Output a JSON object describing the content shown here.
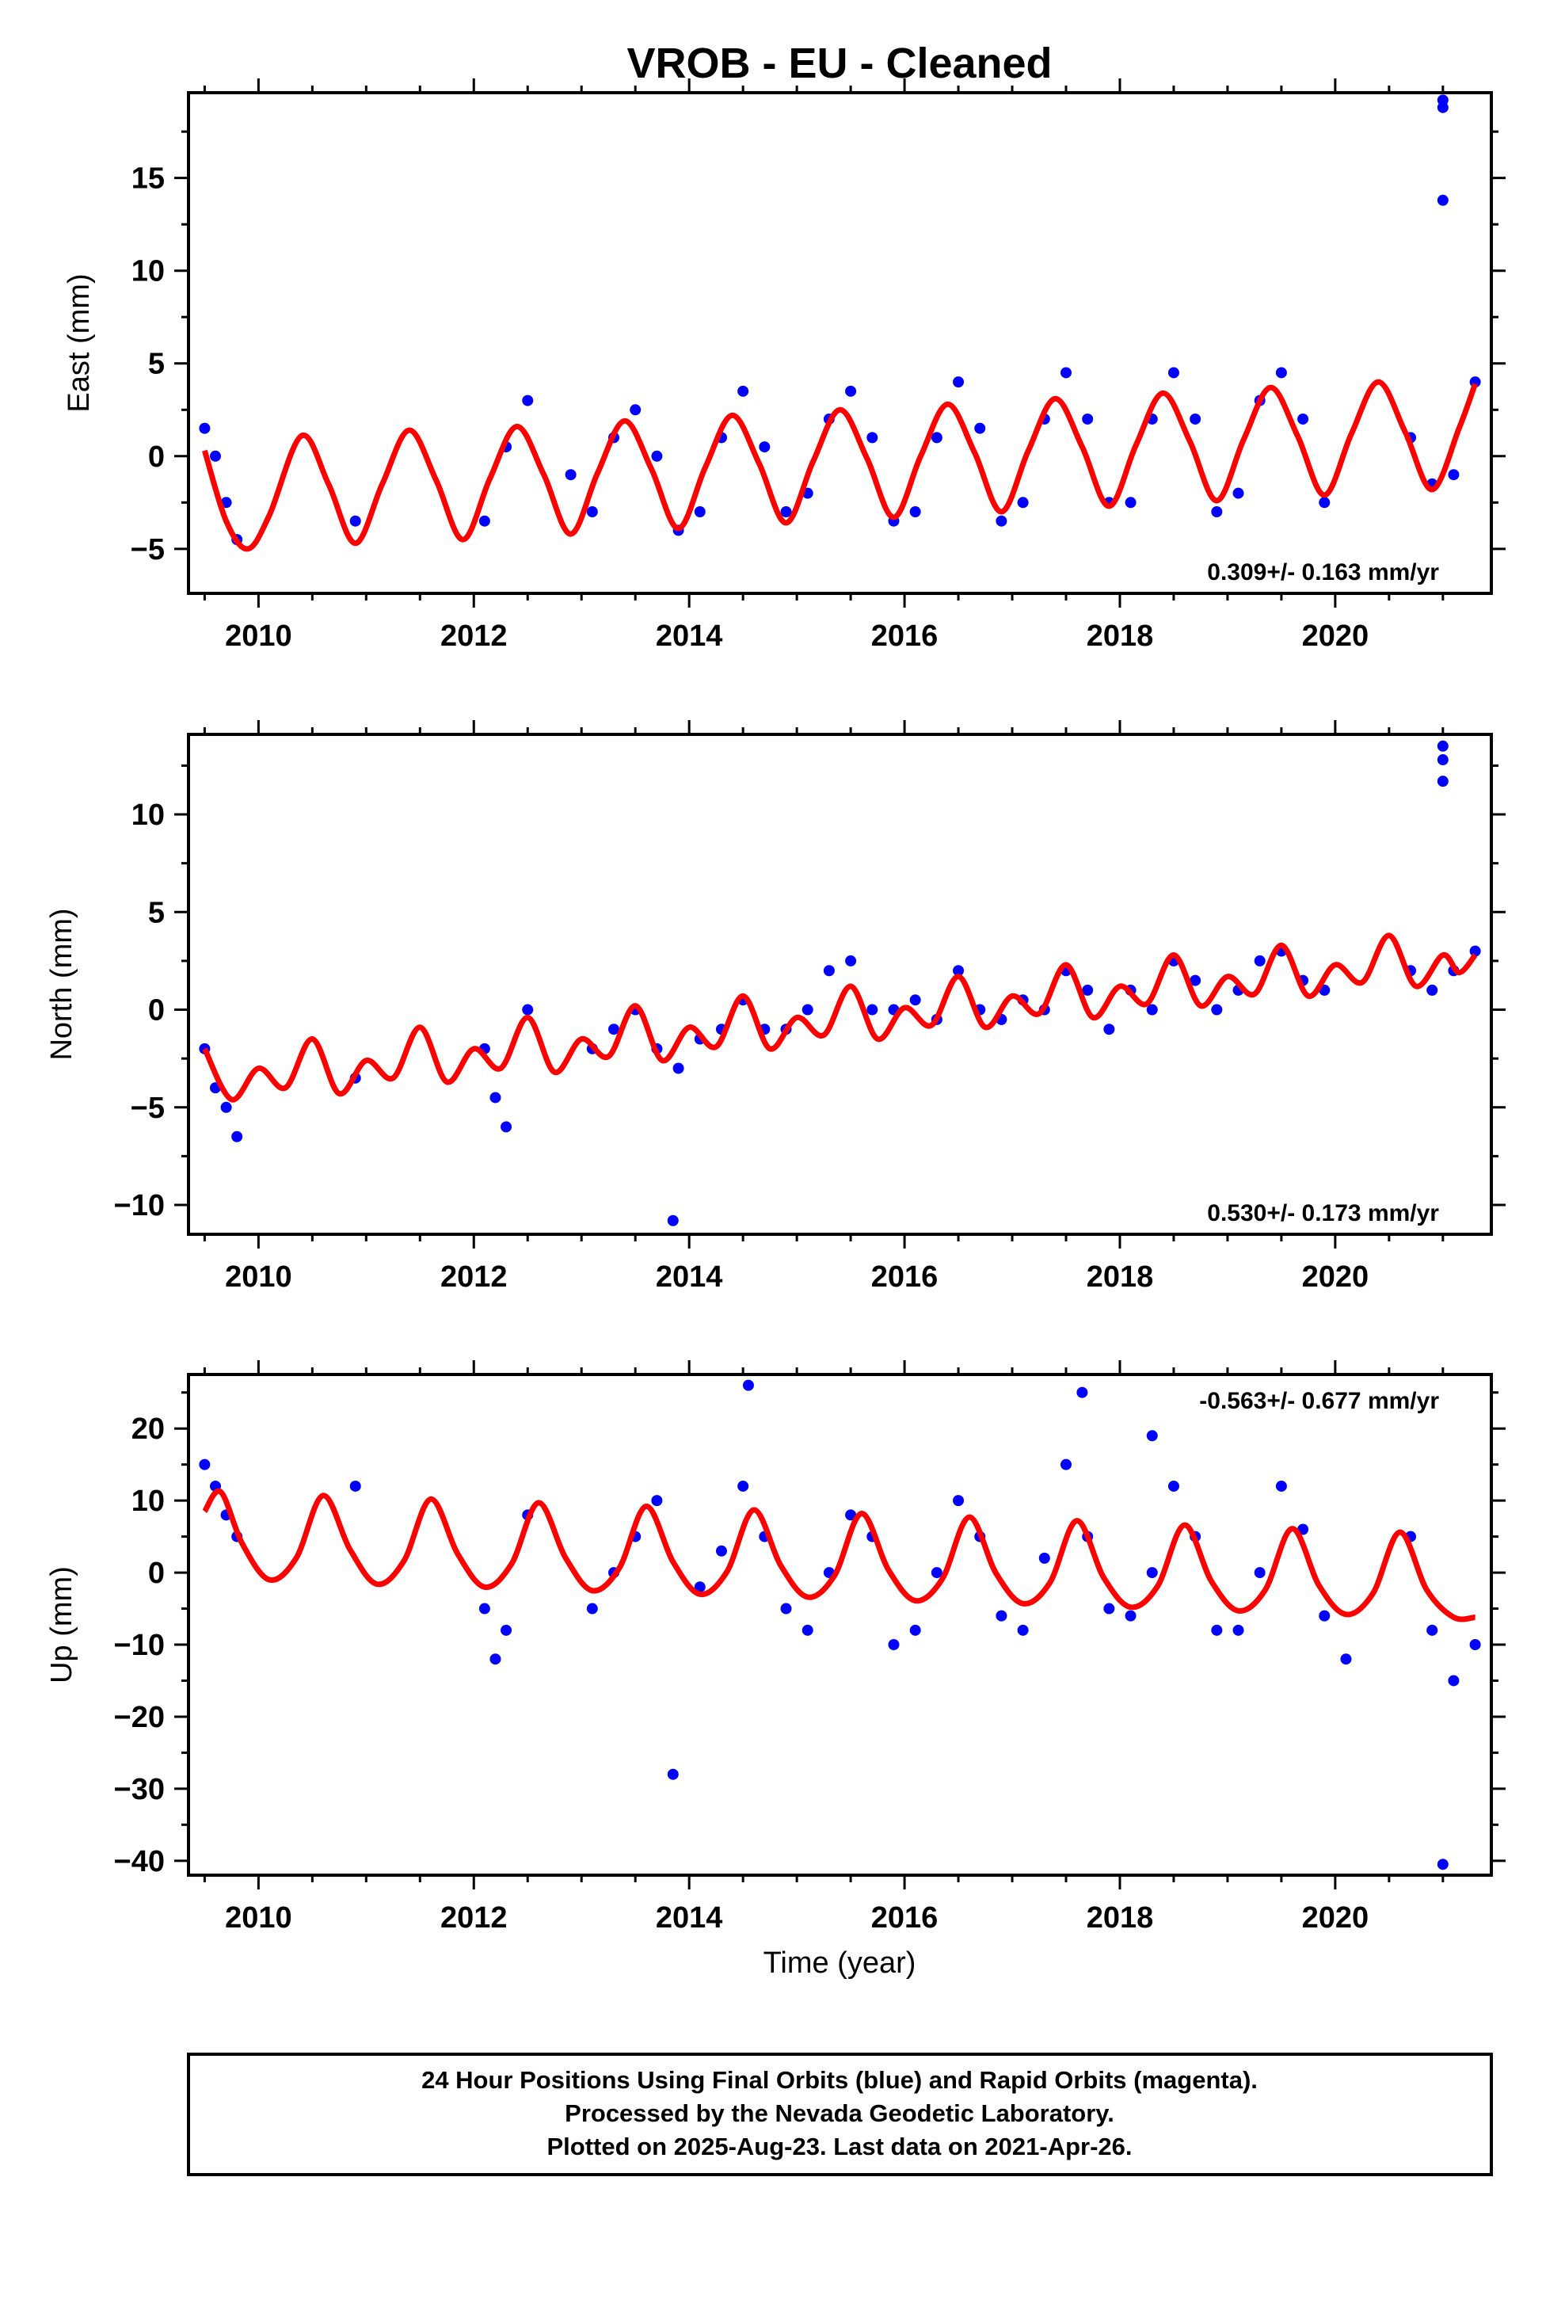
{
  "title": "VROB  - EU - Cleaned",
  "footer": {
    "line1": "24 Hour Positions Using Final Orbits (blue) and Rapid Orbits (magenta).",
    "line2": "Processed by the Nevada Geodetic Laboratory.",
    "line3": "Plotted on 2025-Aug-23. Last data on 2021-Apr-26."
  },
  "colors": {
    "points": "#0000ff",
    "model": "#ff0000",
    "axis": "#000000"
  },
  "chart_data": [
    {
      "type": "scatter",
      "id": "east",
      "ylabel": "East (mm)",
      "xlabel": "",
      "xlim": [
        2009.35,
        2021.45
      ],
      "ylim": [
        -7.4,
        19.6
      ],
      "xticks": [
        "2010",
        "2012",
        "2014",
        "2016",
        "2018",
        "2020"
      ],
      "yticks": [
        "−5",
        "0",
        "5",
        "10",
        "15"
      ],
      "rate_label": "0.309+/- 0.163 mm/yr",
      "rate_position": "bottom-right",
      "series": [
        {
          "role": "points",
          "x": [
            2009.5,
            2009.6,
            2009.7,
            2009.8,
            2010.9,
            2012.1,
            2012.3,
            2012.5,
            2012.9,
            2013.1,
            2013.3,
            2013.5,
            2013.7,
            2013.9,
            2014.1,
            2014.3,
            2014.5,
            2014.7,
            2014.9,
            2015.1,
            2015.3,
            2015.5,
            2015.7,
            2015.9,
            2016.1,
            2016.3,
            2016.5,
            2016.7,
            2016.9,
            2017.1,
            2017.3,
            2017.5,
            2017.7,
            2017.9,
            2018.1,
            2018.3,
            2018.5,
            2018.7,
            2018.9,
            2019.1,
            2019.3,
            2019.5,
            2019.7,
            2019.9,
            2020.7,
            2020.9,
            2021.0,
            2021.0,
            2021.0,
            2021.1,
            2021.3
          ],
          "y": [
            1.5,
            0,
            -2.5,
            -4.5,
            -3.5,
            -3.5,
            0.5,
            3,
            -1,
            -3,
            1,
            2.5,
            0,
            -4,
            -3,
            1,
            3.5,
            0.5,
            -3,
            -2,
            2,
            3.5,
            1,
            -3.5,
            -3,
            1,
            4,
            1.5,
            -3.5,
            -2.5,
            2,
            4.5,
            2,
            -2.5,
            -2.5,
            2,
            4.5,
            2,
            -3,
            -2,
            3,
            4.5,
            2,
            -2.5,
            1,
            -1.5,
            19.2,
            18.8,
            13.8,
            -1,
            4
          ]
        },
        {
          "role": "model",
          "name": "",
          "x": [
            2009.5,
            2009.7,
            2009.9,
            2010.1,
            2010.4,
            2010.65,
            2010.9,
            2011.15,
            2011.4,
            2011.65,
            2011.9,
            2012.15,
            2012.4,
            2012.65,
            2012.9,
            2013.15,
            2013.4,
            2013.65,
            2013.9,
            2014.15,
            2014.4,
            2014.65,
            2014.9,
            2015.15,
            2015.4,
            2015.65,
            2015.9,
            2016.15,
            2016.4,
            2016.65,
            2016.9,
            2017.15,
            2017.4,
            2017.65,
            2017.9,
            2018.15,
            2018.4,
            2018.65,
            2018.9,
            2019.15,
            2019.4,
            2019.65,
            2019.9,
            2020.15,
            2020.4,
            2020.65,
            2020.9,
            2021.15,
            2021.3
          ],
          "y": [
            0.3,
            -3.5,
            -5.0,
            -3.2,
            1.1,
            -1.5,
            -4.7,
            -1.5,
            1.4,
            -1.3,
            -4.5,
            -1.2,
            1.6,
            -1.0,
            -4.2,
            -0.9,
            1.9,
            -0.7,
            -3.9,
            -0.6,
            2.2,
            -0.4,
            -3.6,
            -0.3,
            2.5,
            -0.1,
            -3.3,
            0.0,
            2.8,
            0.2,
            -3.0,
            0.3,
            3.1,
            0.5,
            -2.7,
            0.6,
            3.4,
            0.8,
            -2.4,
            0.9,
            3.7,
            1.1,
            -2.1,
            1.2,
            4.0,
            1.3,
            -1.8,
            1.5,
            3.9
          ]
        }
      ]
    },
    {
      "type": "scatter",
      "id": "north",
      "ylabel": "North (mm)",
      "xlabel": "",
      "xlim": [
        2009.35,
        2021.45
      ],
      "ylim": [
        -11.5,
        14.1
      ],
      "xticks": [
        "2010",
        "2012",
        "2014",
        "2016",
        "2018",
        "2020"
      ],
      "yticks": [
        "−10",
        "−5",
        "0",
        "5",
        "10"
      ],
      "rate_label": "0.530+/- 0.173 mm/yr",
      "rate_position": "bottom-right",
      "series": [
        {
          "role": "points",
          "x": [
            2009.5,
            2009.6,
            2009.7,
            2009.8,
            2010.9,
            2012.1,
            2012.2,
            2012.3,
            2012.5,
            2013.1,
            2013.3,
            2013.5,
            2013.7,
            2013.9,
            2014.1,
            2014.3,
            2014.5,
            2014.7,
            2014.9,
            2015.1,
            2015.3,
            2015.5,
            2015.7,
            2015.9,
            2016.1,
            2016.3,
            2016.5,
            2016.7,
            2016.9,
            2017.1,
            2017.3,
            2017.5,
            2017.7,
            2017.9,
            2018.1,
            2018.3,
            2018.5,
            2018.7,
            2018.9,
            2019.1,
            2019.3,
            2019.5,
            2019.7,
            2019.9,
            2020.7,
            2020.9,
            2021.0,
            2021.0,
            2021.0,
            2021.1,
            2021.3,
            2013.85
          ],
          "y": [
            -2,
            -4,
            -5,
            -6.5,
            -3.5,
            -2,
            -4.5,
            -6,
            0,
            -2,
            -1,
            0,
            -2,
            -3,
            -1.5,
            -1,
            0.5,
            -1,
            -1,
            0,
            2,
            2.5,
            0,
            0,
            0.5,
            -0.5,
            2,
            0,
            -0.5,
            0.5,
            0,
            2,
            1,
            -1,
            1,
            0,
            2.5,
            1.5,
            0,
            1,
            2.5,
            3,
            1.5,
            1,
            2,
            1,
            13.5,
            12.8,
            11.7,
            2,
            3,
            -10.8
          ]
        },
        {
          "role": "model",
          "name": "",
          "x": [
            2009.5,
            2009.75,
            2010.0,
            2010.25,
            2010.5,
            2010.75,
            2011.0,
            2011.25,
            2011.5,
            2011.75,
            2012.0,
            2012.25,
            2012.5,
            2012.75,
            2013.0,
            2013.25,
            2013.5,
            2013.75,
            2014.0,
            2014.25,
            2014.5,
            2014.75,
            2015.0,
            2015.25,
            2015.5,
            2015.75,
            2016.0,
            2016.25,
            2016.5,
            2016.75,
            2017.0,
            2017.25,
            2017.5,
            2017.75,
            2018.0,
            2018.25,
            2018.5,
            2018.75,
            2019.0,
            2019.25,
            2019.5,
            2019.75,
            2020.0,
            2020.25,
            2020.5,
            2020.75,
            2021.0,
            2021.15,
            2021.3
          ],
          "y": [
            -2.0,
            -4.6,
            -3.0,
            -4.0,
            -1.5,
            -4.3,
            -2.6,
            -3.5,
            -0.9,
            -3.7,
            -2.0,
            -3.0,
            -0.4,
            -3.2,
            -1.5,
            -2.4,
            0.2,
            -2.6,
            -0.9,
            -1.9,
            0.7,
            -2.0,
            -0.4,
            -1.3,
            1.2,
            -1.5,
            0.1,
            -0.8,
            1.7,
            -0.9,
            0.7,
            -0.2,
            2.3,
            -0.4,
            1.2,
            0.3,
            2.8,
            0.2,
            1.7,
            0.8,
            3.3,
            0.7,
            2.3,
            1.4,
            3.8,
            1.2,
            2.8,
            1.9,
            2.8
          ]
        }
      ]
    },
    {
      "type": "scatter",
      "id": "up",
      "ylabel": "Up (mm)",
      "xlabel": "Time (year)",
      "xlim": [
        2009.35,
        2021.45
      ],
      "ylim": [
        -42,
        27.5
      ],
      "xticks": [
        "2010",
        "2012",
        "2014",
        "2016",
        "2018",
        "2020"
      ],
      "yticks": [
        "−40",
        "−30",
        "−20",
        "−10",
        "0",
        "10",
        "20"
      ],
      "rate_label": "-0.563+/- 0.677 mm/yr",
      "rate_position": "top-right",
      "series": [
        {
          "role": "points",
          "x": [
            2009.5,
            2009.6,
            2009.7,
            2009.8,
            2010.9,
            2012.1,
            2012.2,
            2012.3,
            2012.5,
            2013.1,
            2013.3,
            2013.5,
            2013.7,
            2013.85,
            2014.1,
            2014.3,
            2014.5,
            2014.7,
            2014.9,
            2015.1,
            2015.3,
            2015.5,
            2015.7,
            2015.9,
            2016.1,
            2016.3,
            2016.5,
            2016.7,
            2016.9,
            2017.1,
            2017.3,
            2017.5,
            2017.7,
            2017.9,
            2018.1,
            2018.3,
            2018.5,
            2018.7,
            2018.9,
            2019.1,
            2019.3,
            2019.5,
            2019.7,
            2019.9,
            2020.1,
            2020.7,
            2020.9,
            2021.0,
            2021.1,
            2021.3,
            2014.55,
            2017.65,
            2018.3
          ],
          "y": [
            15,
            12,
            8,
            5,
            12,
            -5,
            -12,
            -8,
            8,
            -5,
            0,
            5,
            10,
            -28,
            -2,
            3,
            12,
            5,
            -5,
            -8,
            0,
            8,
            5,
            -10,
            -8,
            0,
            10,
            5,
            -6,
            -8,
            2,
            15,
            5,
            -5,
            -6,
            0,
            12,
            5,
            -8,
            -8,
            0,
            12,
            6,
            -6,
            -12,
            5,
            -8,
            -40.5,
            -15,
            -10,
            26,
            25,
            19
          ]
        },
        {
          "role": "model",
          "name": "",
          "x": [
            2009.5,
            2009.65,
            2009.85,
            2010.1,
            2010.35,
            2010.6,
            2010.85,
            2011.1,
            2011.35,
            2011.6,
            2011.85,
            2012.1,
            2012.35,
            2012.6,
            2012.85,
            2013.1,
            2013.35,
            2013.6,
            2013.85,
            2014.1,
            2014.35,
            2014.6,
            2014.85,
            2015.1,
            2015.35,
            2015.6,
            2015.85,
            2016.1,
            2016.35,
            2016.6,
            2016.85,
            2017.1,
            2017.35,
            2017.6,
            2017.85,
            2018.1,
            2018.35,
            2018.6,
            2018.85,
            2019.1,
            2019.35,
            2019.6,
            2019.85,
            2020.1,
            2020.35,
            2020.6,
            2020.85,
            2021.1,
            2021.3
          ],
          "y": [
            8.5,
            11.2,
            4.0,
            -1.0,
            2.0,
            10.7,
            3.2,
            -1.6,
            1.6,
            10.2,
            2.6,
            -2.0,
            1.2,
            9.7,
            2.1,
            -2.5,
            0.6,
            9.2,
            1.5,
            -3.0,
            0.1,
            8.7,
            1.0,
            -3.4,
            -0.4,
            8.2,
            0.4,
            -3.9,
            -0.9,
            7.7,
            -0.1,
            -4.3,
            -1.4,
            7.2,
            -0.7,
            -4.8,
            -1.9,
            6.6,
            -1.2,
            -5.3,
            -2.4,
            6.1,
            -1.8,
            -5.8,
            -2.9,
            5.6,
            -2.4,
            -6.2,
            -6.2
          ]
        }
      ]
    }
  ]
}
